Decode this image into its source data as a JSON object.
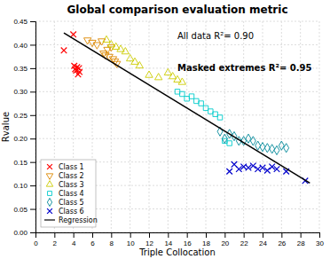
{
  "chart_data": {
    "type": "scatter",
    "title": "Global comparison evaluation metric",
    "x_label": "Triple Collocation",
    "y_label": "Rvalue",
    "xlim": [
      0,
      30
    ],
    "ylim": [
      0,
      0.45
    ],
    "xticks": [
      0,
      2,
      4,
      6,
      8,
      10,
      12,
      14,
      16,
      18,
      20,
      22,
      24,
      26,
      28,
      30
    ],
    "yticks": [
      {
        "value": 0,
        "label": "0.00"
      },
      0.05,
      {
        "value": 0.1,
        "label": "0.10"
      },
      0.15,
      {
        "value": 0.2,
        "label": "0.20"
      },
      0.25,
      {
        "value": 0.3,
        "label": "0.30"
      },
      0.35,
      {
        "value": 0.4,
        "label": "0.40"
      },
      0.45
    ],
    "grid": true,
    "legend": "lower left",
    "annotations": [
      "All data R²= 0.90",
      "Masked extremes R²= 0.95"
    ],
    "series": [
      {
        "name": "Class 1",
        "color": "#ff0000",
        "marker": "x",
        "x": [
          3.0,
          4.0,
          4.1,
          4.2,
          4.3,
          4.4,
          4.5,
          4.6,
          4.65
        ],
        "values": [
          0.388,
          0.422,
          0.355,
          0.348,
          0.345,
          0.352,
          0.337,
          0.35,
          0.342
        ]
      },
      {
        "name": "Class 2",
        "color": "#dd8800",
        "marker": "triangle-down",
        "x": [
          5.5,
          6.0,
          6.5,
          7.0,
          7.2,
          7.4,
          7.6,
          7.8,
          8.0,
          8.2,
          8.4,
          8.6
        ],
        "values": [
          0.41,
          0.405,
          0.4,
          0.408,
          0.382,
          0.378,
          0.39,
          0.375,
          0.395,
          0.37,
          0.365,
          0.36
        ]
      },
      {
        "name": "Class 3",
        "color": "#cccc00",
        "marker": "triangle-up",
        "x": [
          7.5,
          8.0,
          8.5,
          9.0,
          9.5,
          10.0,
          10.5,
          11.0,
          12.0,
          13.0,
          14.0,
          14.5,
          15.0,
          15.5
        ],
        "values": [
          0.41,
          0.4,
          0.395,
          0.39,
          0.385,
          0.37,
          0.363,
          0.355,
          0.335,
          0.33,
          0.34,
          0.332,
          0.325,
          0.32
        ]
      },
      {
        "name": "Class 4",
        "color": "#00cccc",
        "marker": "square",
        "x": [
          15.0,
          15.5,
          16.0,
          16.5,
          17.0,
          17.5,
          18.0,
          18.5,
          19.0,
          19.5,
          20.0,
          20.5
        ],
        "values": [
          0.3,
          0.295,
          0.285,
          0.29,
          0.28,
          0.275,
          0.265,
          0.258,
          0.252,
          0.245,
          0.195,
          0.19
        ]
      },
      {
        "name": "Class 5",
        "color": "#008899",
        "marker": "diamond",
        "x": [
          19.5,
          20.0,
          20.5,
          21.0,
          21.5,
          22.0,
          22.5,
          23.0,
          23.5,
          24.0,
          24.5,
          25.0,
          25.5,
          26.0,
          26.5
        ],
        "values": [
          0.215,
          0.2,
          0.21,
          0.205,
          0.195,
          0.195,
          0.2,
          0.195,
          0.185,
          0.182,
          0.18,
          0.178,
          0.175,
          0.185,
          0.18
        ]
      },
      {
        "name": "Class 6",
        "color": "#0000cc",
        "marker": "x",
        "x": [
          20.5,
          21.0,
          21.5,
          22.0,
          22.5,
          23.0,
          23.5,
          24.0,
          24.5,
          25.0,
          25.5,
          26.5,
          28.5
        ],
        "values": [
          0.13,
          0.145,
          0.135,
          0.14,
          0.138,
          0.142,
          0.135,
          0.138,
          0.132,
          0.14,
          0.135,
          0.13,
          0.11
        ]
      },
      {
        "name": "Regression",
        "type": "line",
        "color": "#000000",
        "line_style": "solid",
        "x": [
          3.0,
          29.0
        ],
        "values": [
          0.425,
          0.105
        ]
      }
    ]
  }
}
